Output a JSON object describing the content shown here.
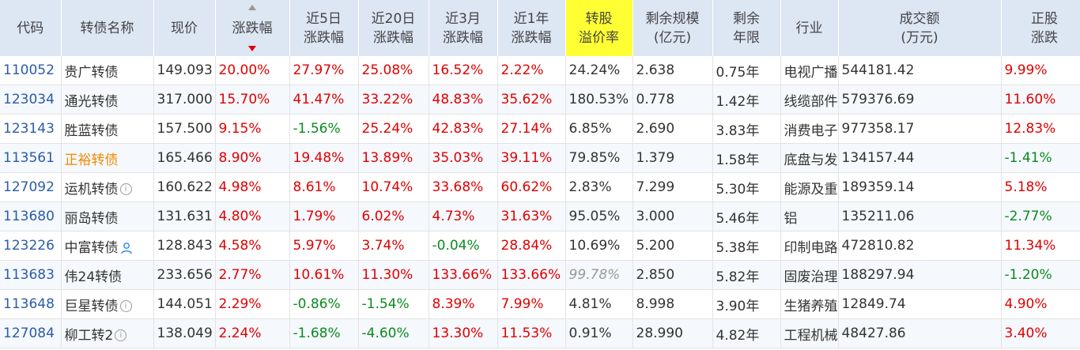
{
  "headers": {
    "code": "代码",
    "name": "转债名称",
    "price": "现价",
    "change": "涨跌幅",
    "c5d_1": "近5日",
    "c5d_2": "涨跌幅",
    "c20d_1": "近20日",
    "c20d_2": "涨跌幅",
    "c3m_1": "近3月",
    "c3m_2": "涨跌幅",
    "c1y_1": "近1年",
    "c1y_2": "涨跌幅",
    "premium_1": "转股",
    "premium_2": "溢价率",
    "scale_1": "剩余规模",
    "scale_2": "(亿元)",
    "years_1": "剩余",
    "years_2": "年限",
    "industry": "行业",
    "turnover_1": "成交额",
    "turnover_2": "(万元)",
    "stock_1": "正股",
    "stock_2": "涨跌"
  },
  "header_highlight_color": "#ffff33",
  "icons": {
    "info": "i"
  },
  "rows": [
    {
      "code": "110052",
      "name": "贵广转债",
      "price": "149.093",
      "change": "20.00%",
      "c5d": "27.97%",
      "c20d": "25.08%",
      "c3m": "16.52%",
      "c1y": "2.22%",
      "premium": "24.24%",
      "scale": "2.638",
      "years": "0.75年",
      "industry": "电视广播",
      "turnover": "544181.42",
      "stock": "9.99%"
    },
    {
      "code": "123034",
      "name": "通光转债",
      "price": "317.000",
      "change": "15.70%",
      "c5d": "41.47%",
      "c20d": "33.22%",
      "c3m": "48.83%",
      "c1y": "35.62%",
      "premium": "180.53%",
      "scale": "0.778",
      "years": "1.42年",
      "industry": "线缆部件及其他",
      "turnover": "579376.69",
      "stock": "11.60%"
    },
    {
      "code": "123143",
      "name": "胜蓝转债",
      "price": "157.500",
      "change": "9.15%",
      "c5d": "-1.56%",
      "c20d": "25.24%",
      "c3m": "42.83%",
      "c1y": "27.14%",
      "premium": "6.85%",
      "scale": "2.690",
      "years": "3.83年",
      "industry": "消费电子零部件及组装",
      "turnover": "977358.17",
      "stock": "12.83%"
    },
    {
      "code": "113561",
      "name": "正裕转债",
      "price": "165.466",
      "change": "8.90%",
      "c5d": "19.48%",
      "c20d": "13.89%",
      "c3m": "35.03%",
      "c1y": "39.11%",
      "premium": "79.85%",
      "scale": "1.379",
      "years": "1.58年",
      "industry": "底盘与发动机系统",
      "turnover": "134157.44",
      "stock": "-1.41%"
    },
    {
      "code": "127092",
      "name": "运机转债",
      "price": "160.622",
      "change": "4.98%",
      "c5d": "8.61%",
      "c20d": "10.74%",
      "c3m": "33.68%",
      "c1y": "60.62%",
      "premium": "2.83%",
      "scale": "7.299",
      "years": "5.30年",
      "industry": "能源及重型设备",
      "turnover": "189359.14",
      "stock": "5.18%"
    },
    {
      "code": "113680",
      "name": "丽岛转债",
      "price": "131.631",
      "change": "4.80%",
      "c5d": "1.79%",
      "c20d": "6.02%",
      "c3m": "4.73%",
      "c1y": "31.63%",
      "premium": "95.05%",
      "scale": "3.000",
      "years": "5.46年",
      "industry": "铝",
      "turnover": "135211.06",
      "stock": "-2.77%"
    },
    {
      "code": "123226",
      "name": "中富转债",
      "price": "128.843",
      "change": "4.58%",
      "c5d": "5.97%",
      "c20d": "3.74%",
      "c3m": "-0.04%",
      "c1y": "28.84%",
      "premium": "10.69%",
      "scale": "5.200",
      "years": "5.38年",
      "industry": "印制电路板",
      "turnover": "472810.82",
      "stock": "11.34%"
    },
    {
      "code": "113683",
      "name": "伟24转债",
      "price": "233.656",
      "change": "2.77%",
      "c5d": "10.61%",
      "c20d": "11.30%",
      "c3m": "133.66%",
      "c1y": "133.66%",
      "premium": "99.78%",
      "scale": "2.850",
      "years": "5.82年",
      "industry": "固废治理",
      "turnover": "188297.94",
      "stock": "-1.20%"
    },
    {
      "code": "113648",
      "name": "巨星转债",
      "price": "144.051",
      "change": "2.29%",
      "c5d": "-0.86%",
      "c20d": "-1.54%",
      "c3m": "8.39%",
      "c1y": "7.99%",
      "premium": "4.81%",
      "scale": "8.998",
      "years": "3.90年",
      "industry": "生猪养殖",
      "turnover": "12849.74",
      "stock": "4.90%"
    },
    {
      "code": "127084",
      "name": "柳工转2",
      "price": "138.049",
      "change": "2.24%",
      "c5d": "-1.68%",
      "c20d": "-4.60%",
      "c3m": "13.30%",
      "c1y": "11.53%",
      "premium": "0.91%",
      "scale": "28.990",
      "years": "4.82年",
      "industry": "工程机械整机",
      "turnover": "48427.86",
      "stock": "3.40%"
    }
  ]
}
